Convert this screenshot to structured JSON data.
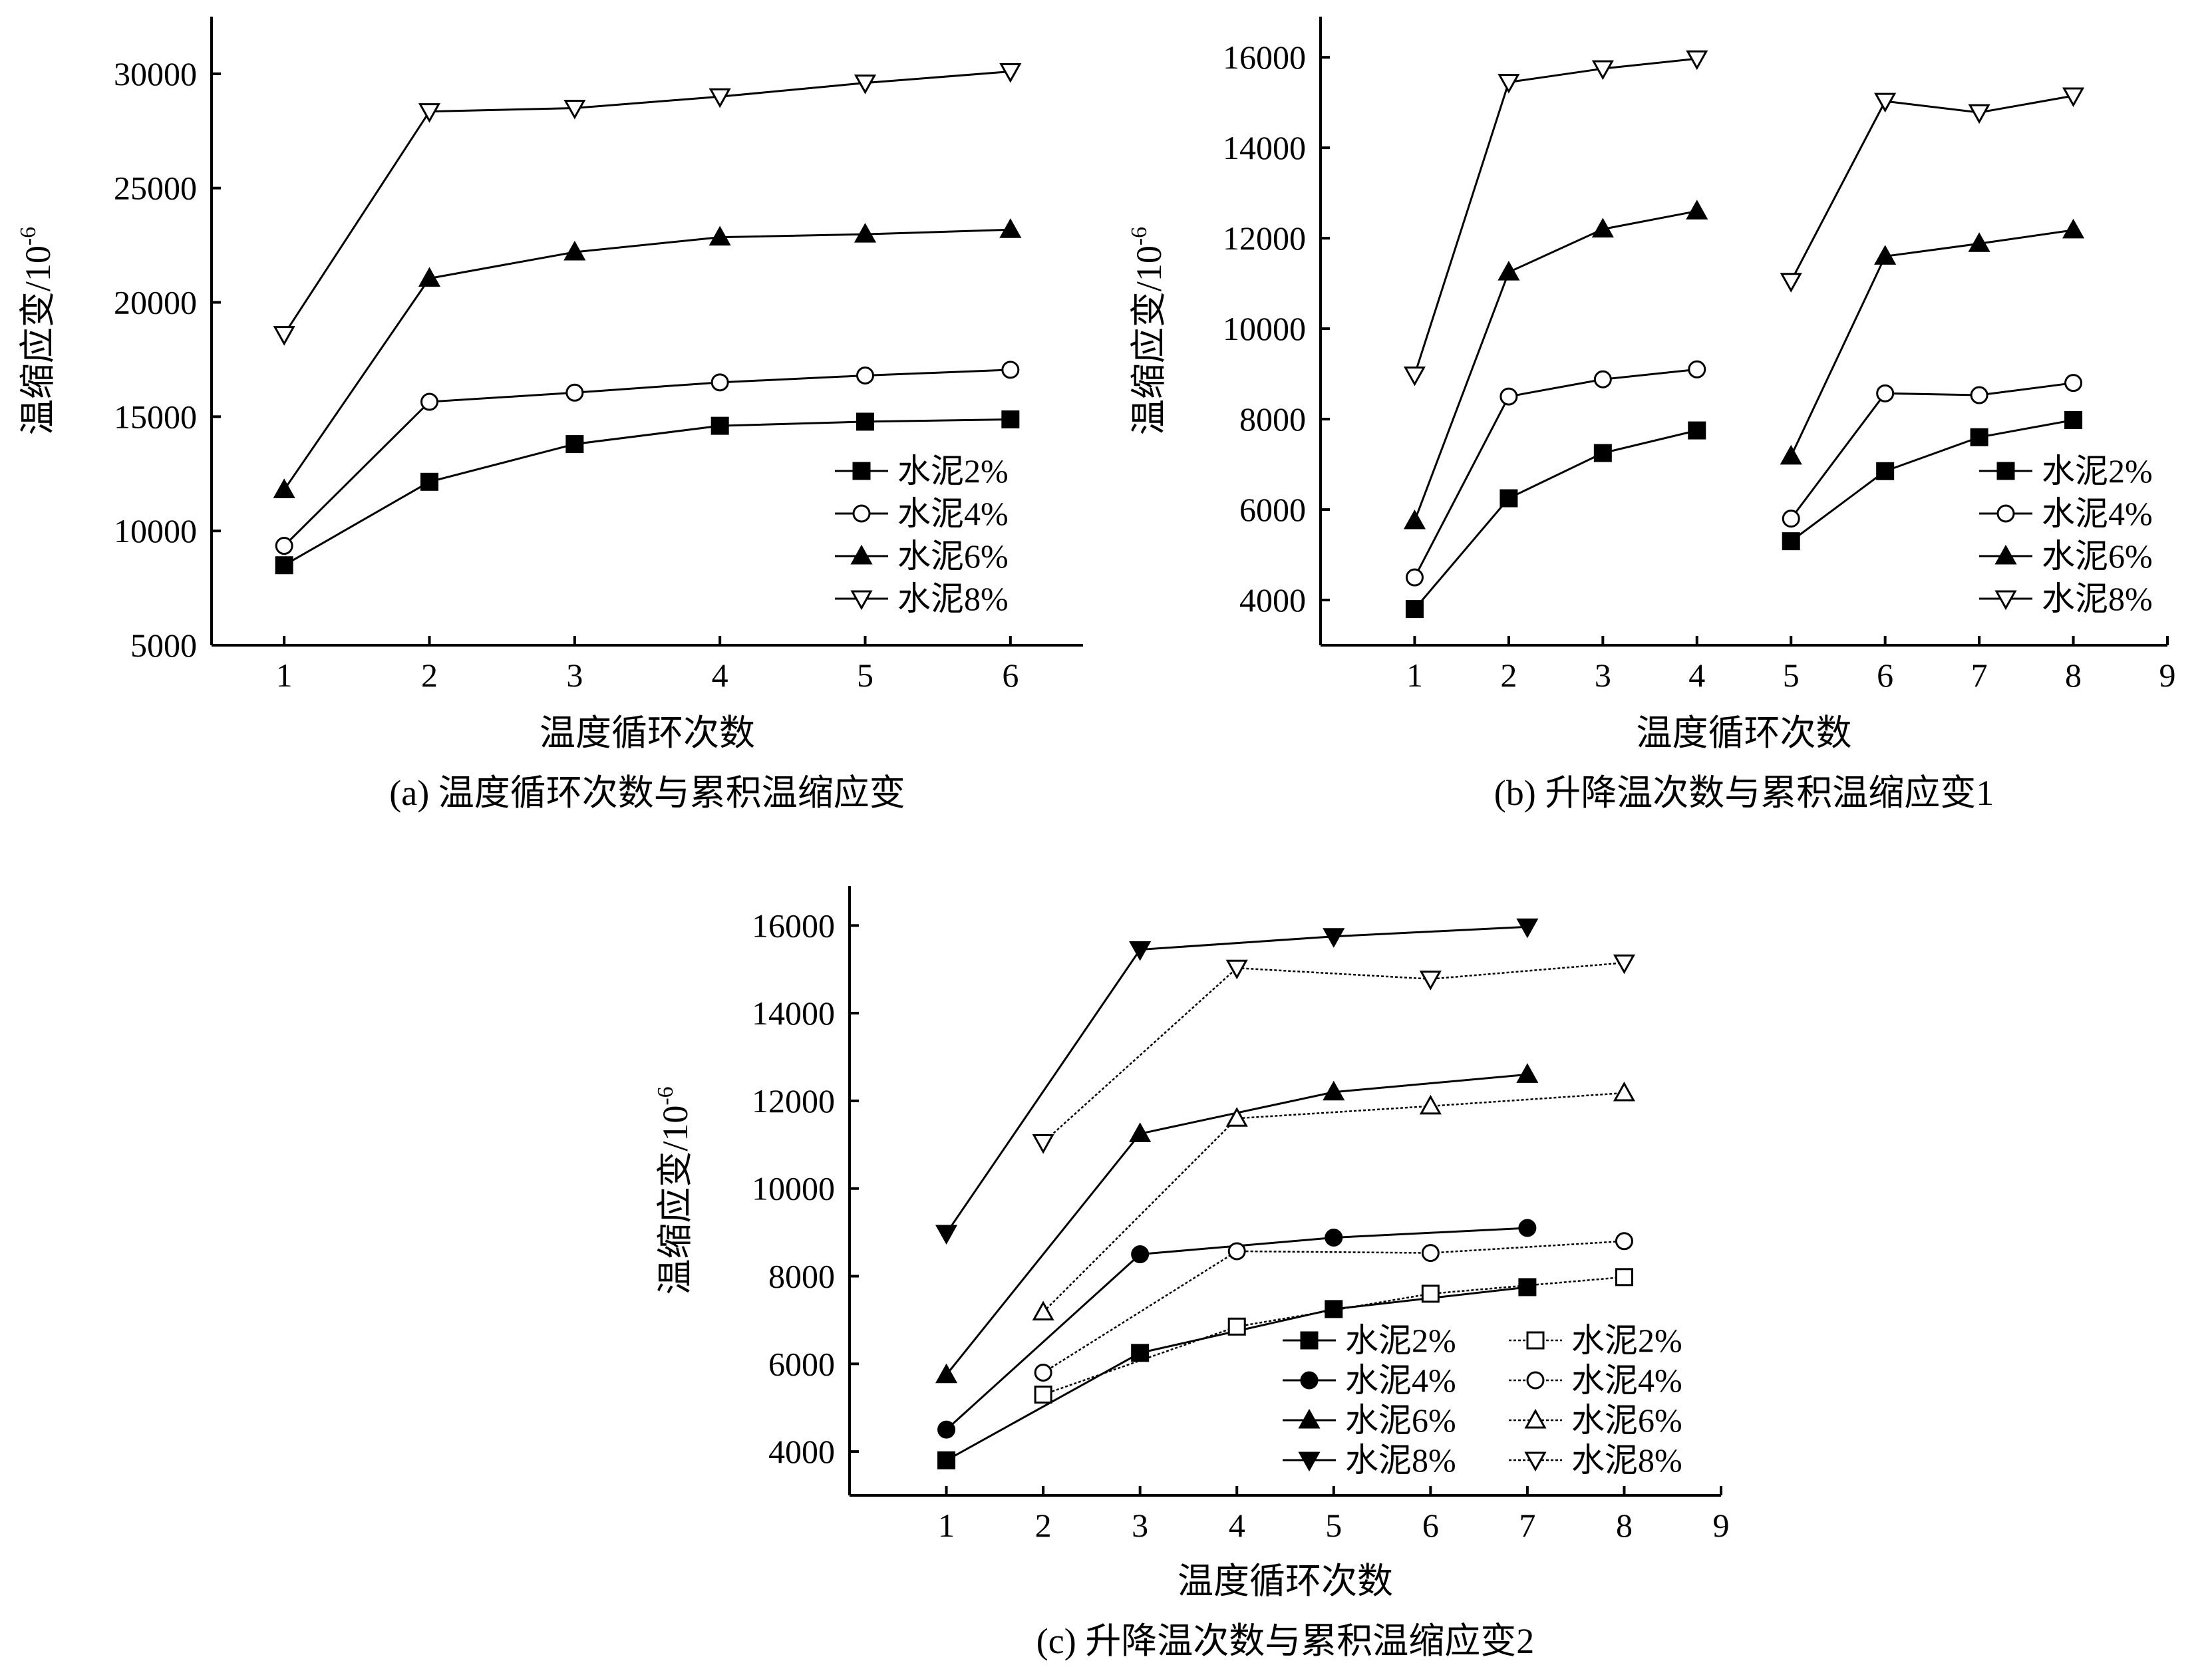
{
  "figure": {
    "background": "#ffffff",
    "ink": "#000000"
  },
  "chart_data": [
    {
      "id": "a",
      "type": "line",
      "caption": "(a) 温度循环次数与累积温缩应变",
      "xlabel": "温度循环次数",
      "ylabel": "温缩应变/10",
      "ylabel_sup": "-6",
      "xlim": [
        0.5,
        6.5
      ],
      "ylim": [
        5000,
        32500
      ],
      "xticks": [
        1,
        2,
        3,
        4,
        5,
        6
      ],
      "yticks": [
        5000,
        10000,
        15000,
        20000,
        25000,
        30000
      ],
      "legend_position": "bottom-right",
      "series": [
        {
          "name": "水泥2%",
          "marker": "square-filled",
          "segments": [
            [
              [
                1,
                8500
              ],
              [
                2,
                12150
              ],
              [
                3,
                13800
              ],
              [
                4,
                14600
              ],
              [
                5,
                14780
              ],
              [
                6,
                14880
              ]
            ]
          ]
        },
        {
          "name": "水泥4%",
          "marker": "circle-open",
          "segments": [
            [
              [
                1,
                9350
              ],
              [
                2,
                15650
              ],
              [
                3,
                16050
              ],
              [
                4,
                16500
              ],
              [
                5,
                16800
              ],
              [
                6,
                17050
              ]
            ]
          ]
        },
        {
          "name": "水泥6%",
          "marker": "triangle-up-filled",
          "segments": [
            [
              [
                1,
                11800
              ],
              [
                2,
                21050
              ],
              [
                3,
                22200
              ],
              [
                4,
                22850
              ],
              [
                5,
                22980
              ],
              [
                6,
                23180
              ]
            ]
          ]
        },
        {
          "name": "水泥8%",
          "marker": "triangle-down-open",
          "segments": [
            [
              [
                1,
                18600
              ],
              [
                2,
                28350
              ],
              [
                3,
                28500
              ],
              [
                4,
                29000
              ],
              [
                5,
                29600
              ],
              [
                6,
                30100
              ]
            ]
          ]
        }
      ]
    },
    {
      "id": "b",
      "type": "line",
      "caption": "(b) 升降温次数与累积温缩应变1",
      "xlabel": "温度循环次数",
      "ylabel": "温缩应变/10",
      "ylabel_sup": "-6",
      "xlim": [
        0,
        9
      ],
      "ylim": [
        3000,
        16900
      ],
      "xticks": [
        1,
        2,
        3,
        4,
        5,
        6,
        7,
        8,
        9
      ],
      "yticks": [
        4000,
        6000,
        8000,
        10000,
        12000,
        14000,
        16000
      ],
      "legend_position": "bottom-right",
      "series": [
        {
          "name": "水泥2%",
          "marker": "square-filled",
          "segments": [
            [
              [
                1,
                3800
              ],
              [
                2,
                6250
              ],
              [
                3,
                7250
              ],
              [
                4,
                7750
              ]
            ],
            [
              [
                5,
                5300
              ],
              [
                6,
                6850
              ],
              [
                7,
                7600
              ],
              [
                8,
                7980
              ]
            ]
          ]
        },
        {
          "name": "水泥4%",
          "marker": "circle-open",
          "segments": [
            [
              [
                1,
                4500
              ],
              [
                2,
                8500
              ],
              [
                3,
                8880
              ],
              [
                4,
                9100
              ]
            ],
            [
              [
                5,
                5800
              ],
              [
                6,
                8570
              ],
              [
                7,
                8530
              ],
              [
                8,
                8800
              ]
            ]
          ]
        },
        {
          "name": "水泥6%",
          "marker": "triangle-up-filled",
          "segments": [
            [
              [
                1,
                5750
              ],
              [
                2,
                11250
              ],
              [
                3,
                12200
              ],
              [
                4,
                12600
              ]
            ],
            [
              [
                5,
                7180
              ],
              [
                6,
                11600
              ],
              [
                7,
                11880
              ],
              [
                8,
                12180
              ]
            ]
          ]
        },
        {
          "name": "水泥8%",
          "marker": "triangle-down-open",
          "segments": [
            [
              [
                1,
                8980
              ],
              [
                2,
                15450
              ],
              [
                3,
                15750
              ],
              [
                4,
                15970
              ]
            ],
            [
              [
                5,
                11050
              ],
              [
                6,
                15030
              ],
              [
                7,
                14780
              ],
              [
                8,
                15150
              ]
            ]
          ]
        }
      ]
    },
    {
      "id": "c",
      "type": "line",
      "caption": "(c) 升降温次数与累积温缩应变2",
      "xlabel": "温度循环次数",
      "ylabel": "温缩应变/10",
      "ylabel_sup": "-6",
      "xlim": [
        0,
        9
      ],
      "ylim": [
        3000,
        16900
      ],
      "xticks": [
        1,
        2,
        3,
        4,
        5,
        6,
        7,
        8,
        9
      ],
      "yticks": [
        4000,
        6000,
        8000,
        10000,
        12000,
        14000,
        16000
      ],
      "legend_position": "bottom-right",
      "legend_columns": 2,
      "series": [
        {
          "name": "水泥2%",
          "marker": "square-filled",
          "segments": [
            [
              [
                1,
                3800
              ],
              [
                3,
                6250
              ],
              [
                5,
                7250
              ],
              [
                7,
                7750
              ]
            ]
          ]
        },
        {
          "name": "水泥4%",
          "marker": "circle-filled",
          "segments": [
            [
              [
                1,
                4500
              ],
              [
                3,
                8500
              ],
              [
                5,
                8880
              ],
              [
                7,
                9100
              ]
            ]
          ]
        },
        {
          "name": "水泥6%",
          "marker": "triangle-up-filled",
          "segments": [
            [
              [
                1,
                5750
              ],
              [
                3,
                11250
              ],
              [
                5,
                12200
              ],
              [
                7,
                12600
              ]
            ]
          ]
        },
        {
          "name": "水泥8%",
          "marker": "triangle-down-filled",
          "segments": [
            [
              [
                1,
                8980
              ],
              [
                3,
                15450
              ],
              [
                5,
                15750
              ],
              [
                7,
                15970
              ]
            ]
          ]
        },
        {
          "name": "水泥2%",
          "marker": "square-open",
          "line": "dotted",
          "segments": [
            [
              [
                2,
                5300
              ],
              [
                4,
                6850
              ],
              [
                6,
                7600
              ],
              [
                8,
                7980
              ]
            ]
          ]
        },
        {
          "name": "水泥4%",
          "marker": "circle-open",
          "line": "dotted",
          "segments": [
            [
              [
                2,
                5800
              ],
              [
                4,
                8570
              ],
              [
                6,
                8530
              ],
              [
                8,
                8800
              ]
            ]
          ]
        },
        {
          "name": "水泥6%",
          "marker": "triangle-up-open",
          "line": "dotted",
          "segments": [
            [
              [
                2,
                7180
              ],
              [
                4,
                11600
              ],
              [
                6,
                11880
              ],
              [
                8,
                12180
              ]
            ]
          ]
        },
        {
          "name": "水泥8%",
          "marker": "triangle-down-open",
          "line": "dotted",
          "segments": [
            [
              [
                2,
                11050
              ],
              [
                4,
                15030
              ],
              [
                6,
                14780
              ],
              [
                8,
                15150
              ]
            ]
          ]
        }
      ]
    }
  ]
}
